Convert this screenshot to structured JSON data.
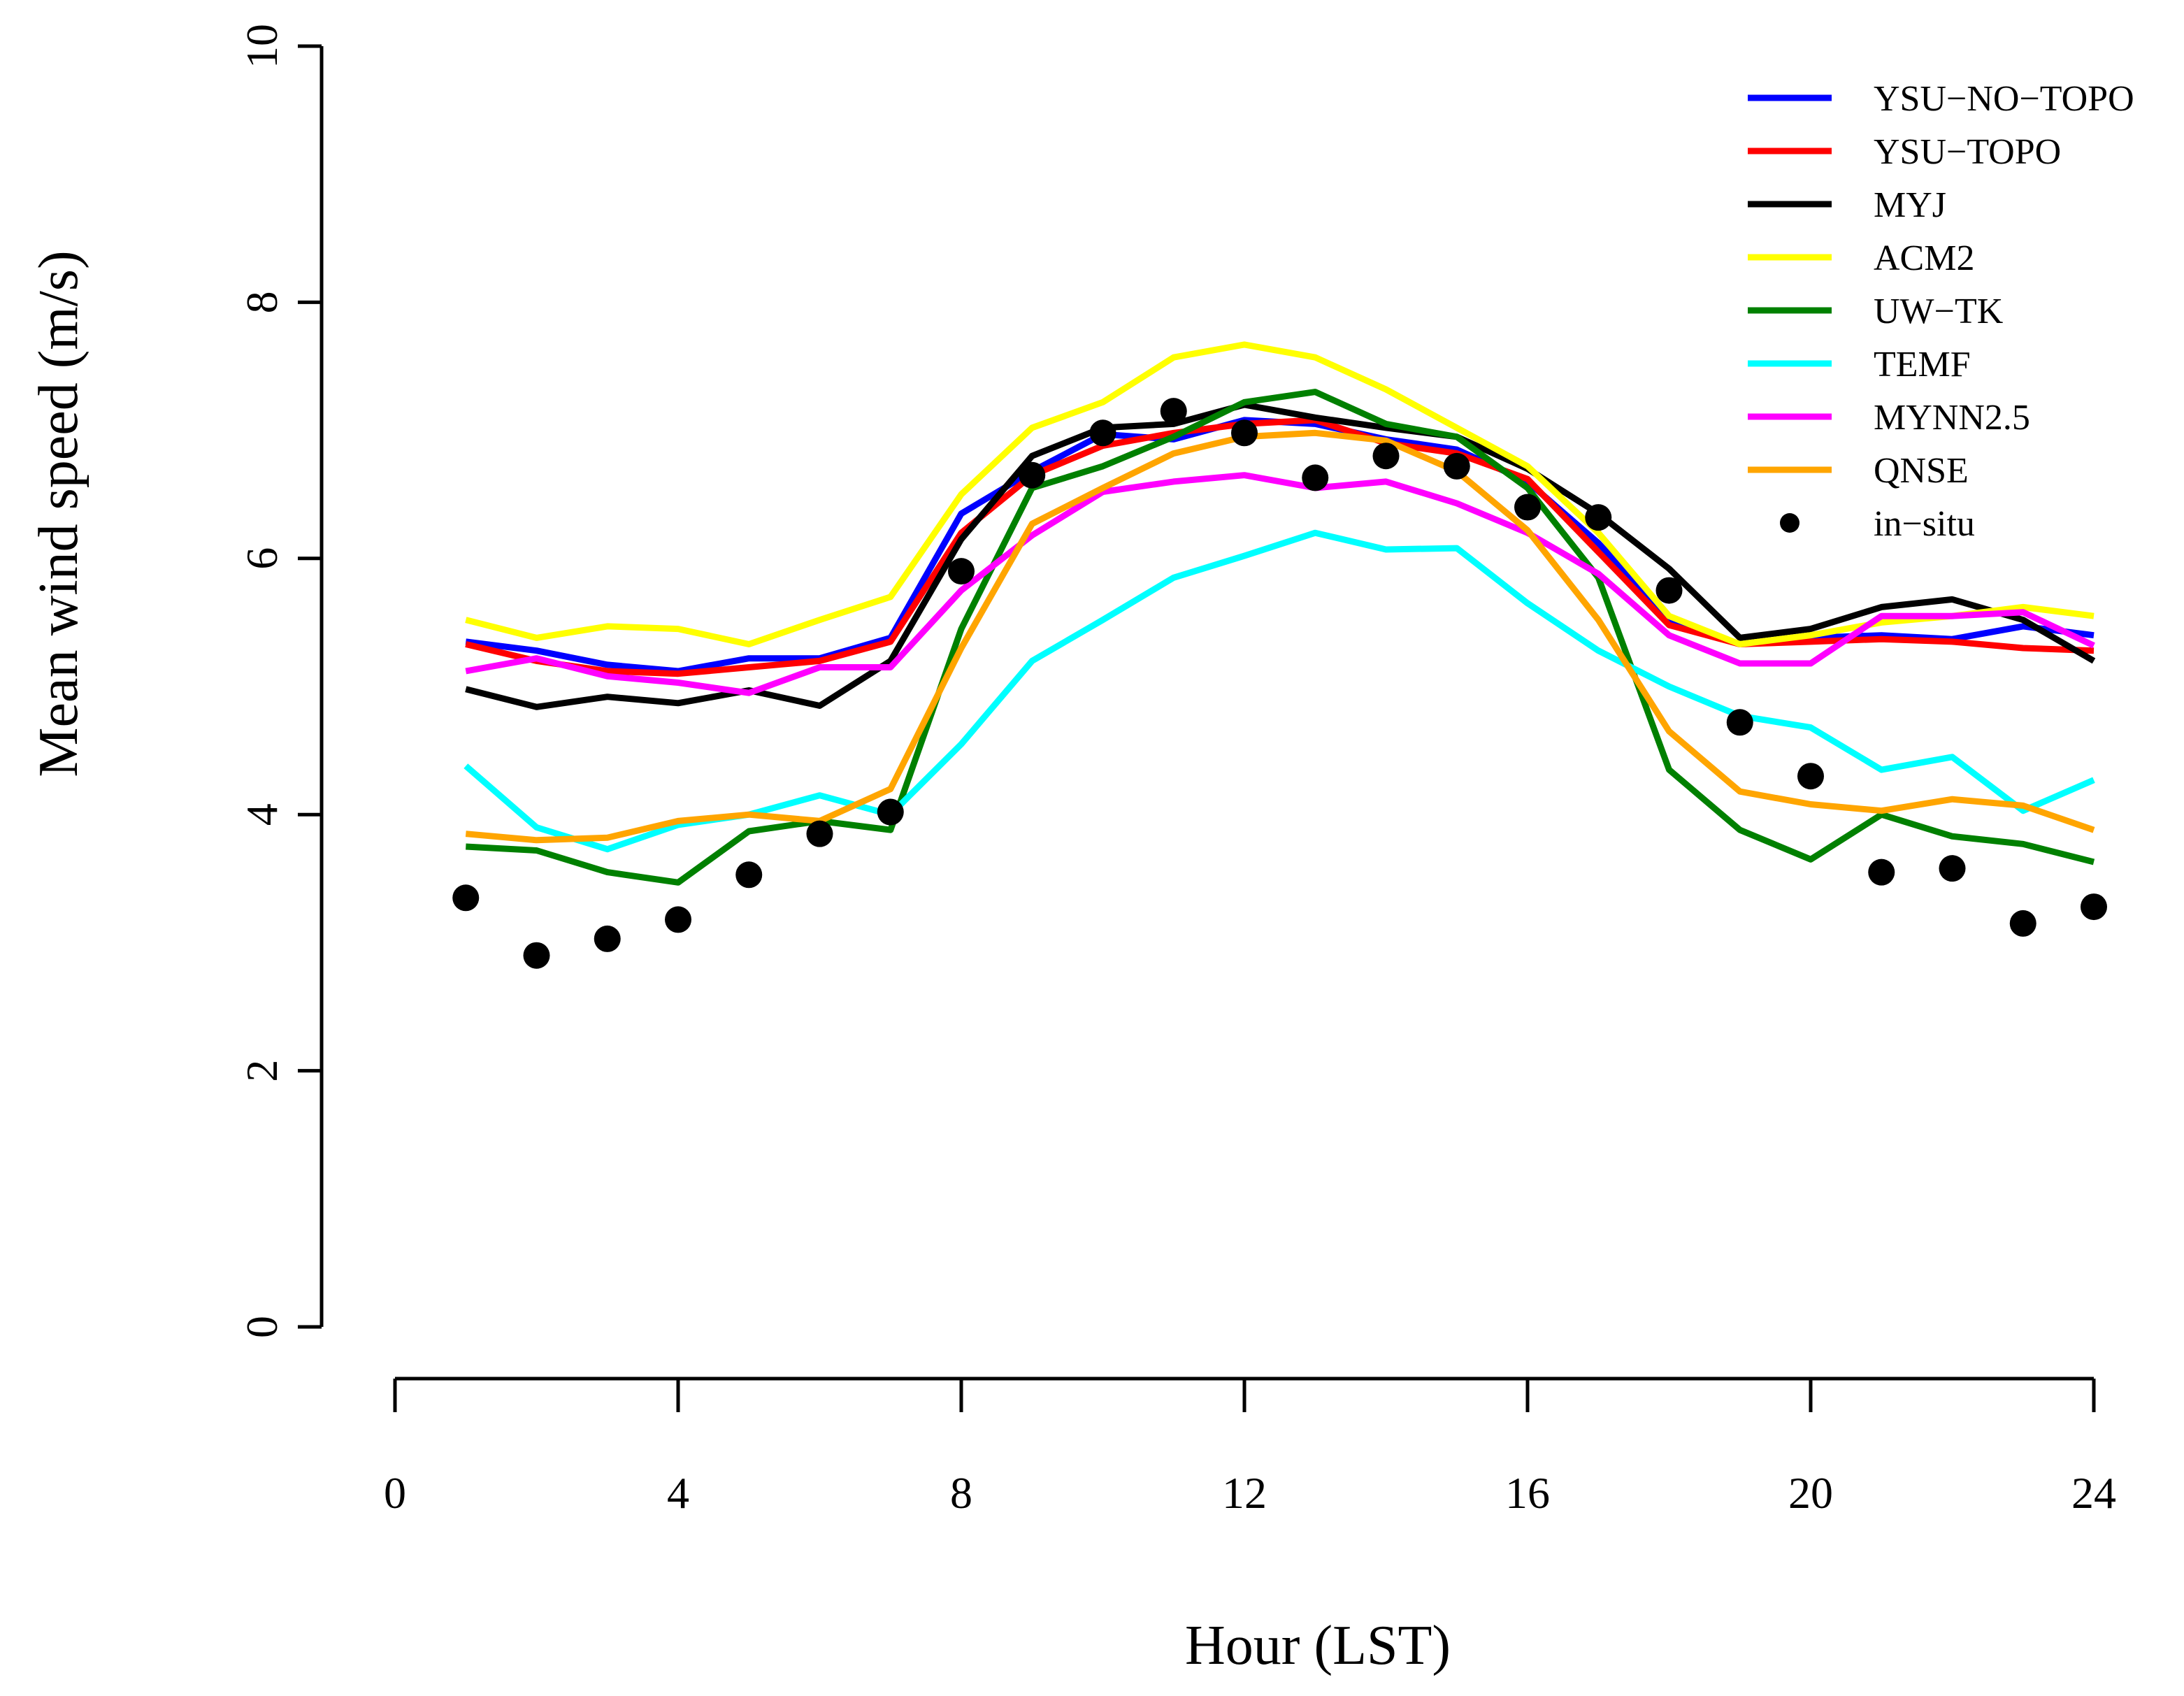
{
  "chart_data": {
    "type": "line",
    "xlabel": "Hour (LST)",
    "ylabel": "Mean wind speed (m/s)",
    "xlim": [
      0,
      24
    ],
    "ylim": [
      0,
      10
    ],
    "xticks": [
      "0",
      "4",
      "8",
      "12",
      "16",
      "20",
      "24"
    ],
    "yticks": [
      "0",
      "2",
      "4",
      "6",
      "8",
      "10"
    ],
    "grid": false,
    "legend_position": "top-right",
    "x": [
      1,
      2,
      3,
      4,
      5,
      6,
      7,
      8,
      9,
      10,
      11,
      12,
      13,
      14,
      15,
      16,
      17,
      18,
      19,
      20,
      21,
      22,
      23,
      24
    ],
    "series": [
      {
        "name": "YSU−NO−TOPO",
        "color": "#0000ff",
        "style": "line",
        "values": [
          5.35,
          5.28,
          5.17,
          5.12,
          5.22,
          5.22,
          5.38,
          6.35,
          6.68,
          6.97,
          6.93,
          7.08,
          7.05,
          6.93,
          6.85,
          6.6,
          6.12,
          5.52,
          5.33,
          5.38,
          5.4,
          5.37,
          5.47,
          5.4
        ]
      },
      {
        "name": "YSU−TOPO",
        "color": "#ff0000",
        "style": "line",
        "values": [
          5.33,
          5.2,
          5.12,
          5.1,
          5.15,
          5.2,
          5.35,
          6.2,
          6.65,
          6.88,
          6.98,
          7.05,
          7.08,
          6.9,
          6.82,
          6.62,
          6.05,
          5.48,
          5.33,
          5.35,
          5.37,
          5.35,
          5.3,
          5.28
        ]
      },
      {
        "name": "MYJ",
        "color": "#000000",
        "style": "line",
        "values": [
          4.98,
          4.84,
          4.92,
          4.87,
          4.97,
          4.85,
          5.2,
          6.15,
          6.8,
          7.02,
          7.05,
          7.2,
          7.1,
          7.02,
          6.95,
          6.7,
          6.35,
          5.92,
          5.38,
          5.45,
          5.62,
          5.68,
          5.52,
          5.2
        ]
      },
      {
        "name": "ACM2",
        "color": "#ffff00",
        "style": "line",
        "values": [
          5.52,
          5.38,
          5.47,
          5.45,
          5.33,
          5.52,
          5.7,
          6.5,
          7.02,
          7.22,
          7.57,
          7.67,
          7.57,
          7.32,
          7.02,
          6.72,
          6.2,
          5.55,
          5.33,
          5.4,
          5.5,
          5.55,
          5.62,
          5.55
        ]
      },
      {
        "name": "UW−TK",
        "color": "#008000",
        "style": "line",
        "values": [
          3.75,
          3.72,
          3.55,
          3.47,
          3.87,
          3.95,
          3.88,
          5.45,
          6.55,
          6.72,
          6.95,
          7.22,
          7.3,
          7.05,
          6.95,
          6.55,
          5.85,
          4.35,
          3.88,
          3.65,
          4.0,
          3.83,
          3.77,
          3.63
        ]
      },
      {
        "name": "TEMF",
        "color": "#00ffff",
        "style": "line",
        "values": [
          4.38,
          3.9,
          3.73,
          3.92,
          4.0,
          4.15,
          4.0,
          4.55,
          5.2,
          5.52,
          5.85,
          6.02,
          6.2,
          6.07,
          6.08,
          5.65,
          5.28,
          5.0,
          4.77,
          4.68,
          4.35,
          4.45,
          4.03,
          4.27
        ]
      },
      {
        "name": "MYNN2.5",
        "color": "#ff00ff",
        "style": "line",
        "values": [
          5.12,
          5.22,
          5.08,
          5.03,
          4.95,
          5.15,
          5.15,
          5.75,
          6.18,
          6.52,
          6.6,
          6.65,
          6.55,
          6.6,
          6.43,
          6.2,
          5.88,
          5.4,
          5.18,
          5.18,
          5.55,
          5.55,
          5.58,
          5.32
        ]
      },
      {
        "name": "QNSE",
        "color": "#ffa500",
        "style": "line",
        "values": [
          3.85,
          3.8,
          3.82,
          3.95,
          4.0,
          3.95,
          4.2,
          5.3,
          6.27,
          6.55,
          6.82,
          6.95,
          6.98,
          6.92,
          6.68,
          6.22,
          5.52,
          4.65,
          4.18,
          4.08,
          4.03,
          4.12,
          4.07,
          3.88
        ]
      },
      {
        "name": "in−situ",
        "color": "#000000",
        "style": "points",
        "values": [
          3.35,
          2.9,
          3.03,
          3.18,
          3.53,
          3.85,
          4.02,
          5.9,
          6.65,
          6.98,
          7.15,
          6.98,
          6.63,
          6.8,
          6.72,
          6.4,
          6.32,
          5.75,
          4.72,
          4.3,
          3.55,
          3.58,
          3.15,
          3.28
        ]
      }
    ]
  }
}
